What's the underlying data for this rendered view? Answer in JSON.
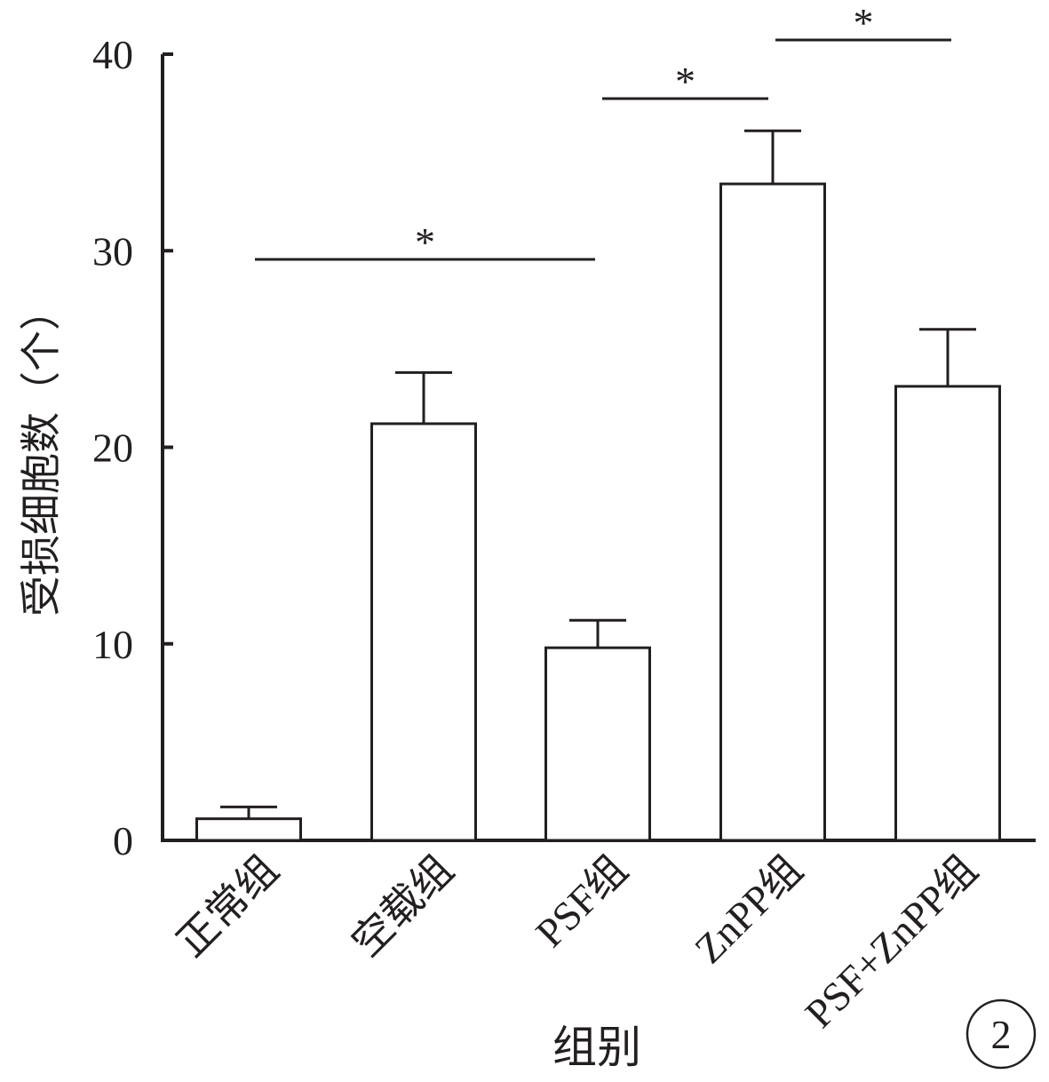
{
  "chart_data": {
    "type": "bar",
    "categories": [
      "正常组",
      "空载组",
      "PSF组",
      "ZnPP组",
      "PSF+ZnPP组"
    ],
    "values": [
      1.1,
      21.2,
      9.8,
      33.4,
      23.1
    ],
    "errors": [
      0.6,
      2.6,
      1.4,
      2.7,
      2.9
    ],
    "xlabel": "组别",
    "ylabel": "受损细胞数（个）",
    "ylim": [
      0,
      40
    ],
    "yticks": [
      0,
      10,
      20,
      30,
      40
    ],
    "yticklabels": [
      "0",
      "10",
      "20",
      "30",
      "40"
    ],
    "grid": false,
    "significance": [
      {
        "from": "正常组",
        "to": "PSF组",
        "label": "*"
      },
      {
        "from": "PSF组",
        "to": "ZnPP组",
        "label": "*"
      },
      {
        "from": "ZnPP组",
        "to": "PSF+ZnPP组",
        "label": "*"
      }
    ],
    "panel_label": "2",
    "colors": {
      "bar_fill": "#ffffff",
      "stroke": "#231f20"
    }
  }
}
